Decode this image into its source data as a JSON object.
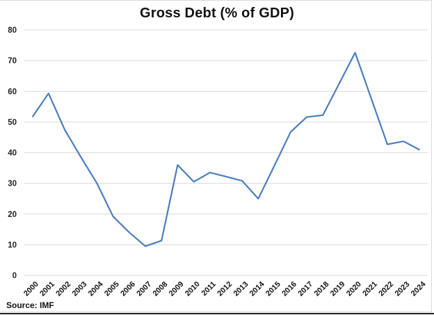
{
  "chart": {
    "title": "Gross Debt (% of GDP)",
    "source": "Source: IMF",
    "line_color": "#4a7ebb",
    "grid_color": "#d9d9d9"
  },
  "chart_data": {
    "type": "line",
    "title": "Gross Debt (% of GDP)",
    "xlabel": "",
    "ylabel": "",
    "ylim": [
      0,
      80
    ],
    "yticks": [
      0,
      10,
      20,
      30,
      40,
      50,
      60,
      70,
      80
    ],
    "grid": true,
    "legend": null,
    "annotations": [
      "Source: IMF"
    ],
    "categories": [
      "2000",
      "2001",
      "2002",
      "2003",
      "2004",
      "2005",
      "2006",
      "2007",
      "2008",
      "2009",
      "2010",
      "2011",
      "2012",
      "2013",
      "2014",
      "2015",
      "2016",
      "2017",
      "2018",
      "2019",
      "2020",
      "2021",
      "2022",
      "2023",
      "2024"
    ],
    "series": [
      {
        "name": "Gross Debt (% of GDP)",
        "values": [
          51.6,
          59.3,
          47.5,
          38.6,
          30.0,
          19.2,
          14.0,
          9.5,
          11.3,
          36.0,
          30.5,
          33.5,
          32.2,
          30.8,
          25.0,
          35.8,
          46.7,
          51.6,
          52.2,
          62.4,
          72.6,
          57.6,
          42.7,
          43.7,
          40.9
        ]
      }
    ]
  }
}
